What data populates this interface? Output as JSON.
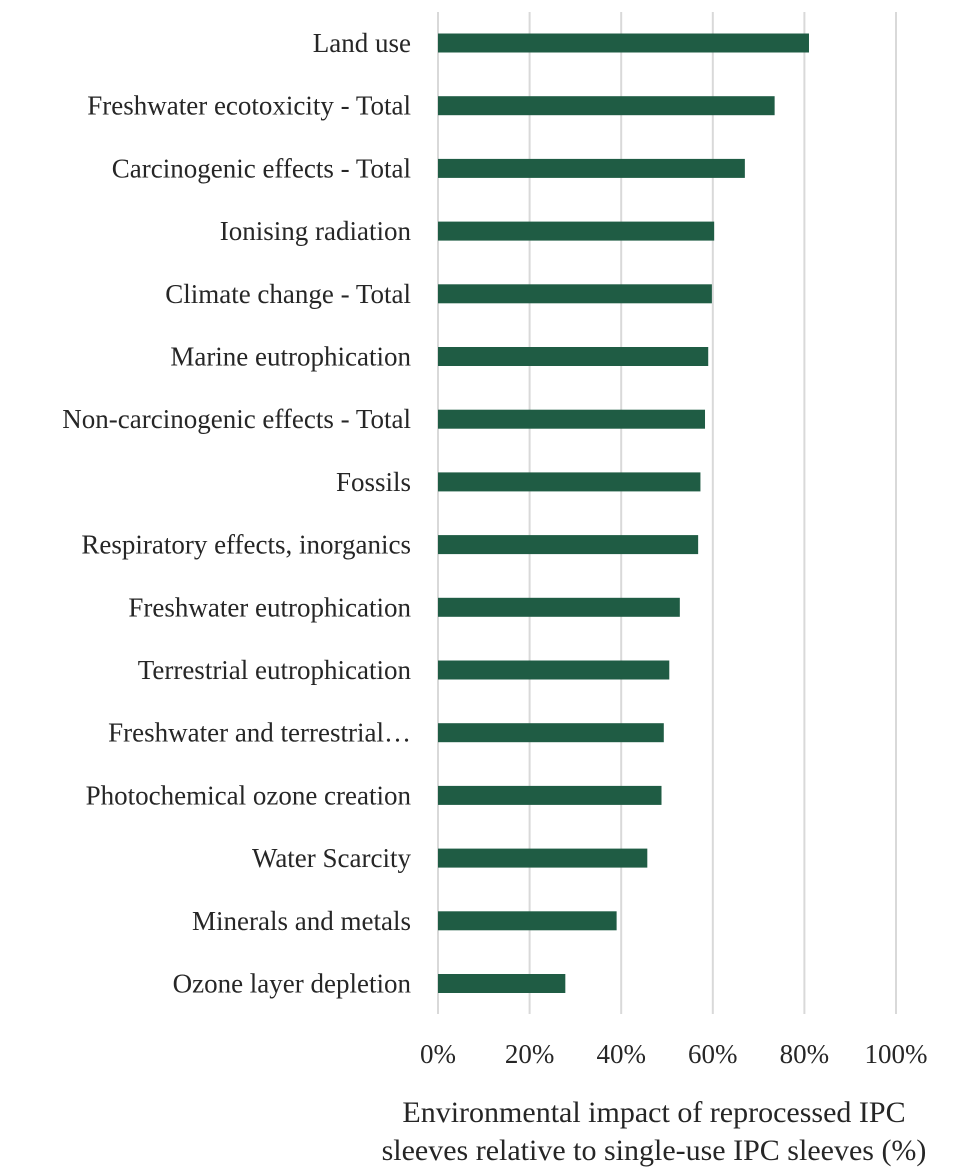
{
  "chart_data": {
    "type": "bar",
    "orientation": "horizontal",
    "categories": [
      "Land use",
      "Freshwater ecotoxicity - Total",
      "Carcinogenic effects - Total",
      "Ionising radiation",
      "Climate change - Total",
      "Marine eutrophication",
      "Non-carcinogenic effects - Total",
      "Fossils",
      "Respiratory effects, inorganics",
      "Freshwater eutrophication",
      "Terrestrial eutrophication",
      "Freshwater and terrestrial…",
      "Photochemical ozone creation",
      "Water Scarcity",
      "Minerals and metals",
      "Ozone layer depletion"
    ],
    "values": [
      81,
      73.5,
      67,
      60.3,
      59.8,
      59,
      58.3,
      57.3,
      56.8,
      52.8,
      50.5,
      49.3,
      48.8,
      45.7,
      39,
      27.8
    ],
    "xlim": [
      0,
      100
    ],
    "xticks": [
      0,
      20,
      40,
      60,
      80,
      100
    ],
    "xtick_labels": [
      "0%",
      "20%",
      "40%",
      "60%",
      "80%",
      "100%"
    ],
    "xlabel_lines": [
      "Environmental impact of reprocessed IPC",
      "sleeves relative to single-use IPC sleeves (%)"
    ],
    "grid": true,
    "legend": "none",
    "bar_color": "#1f5c44",
    "grid_color": "#d9d9d9"
  }
}
